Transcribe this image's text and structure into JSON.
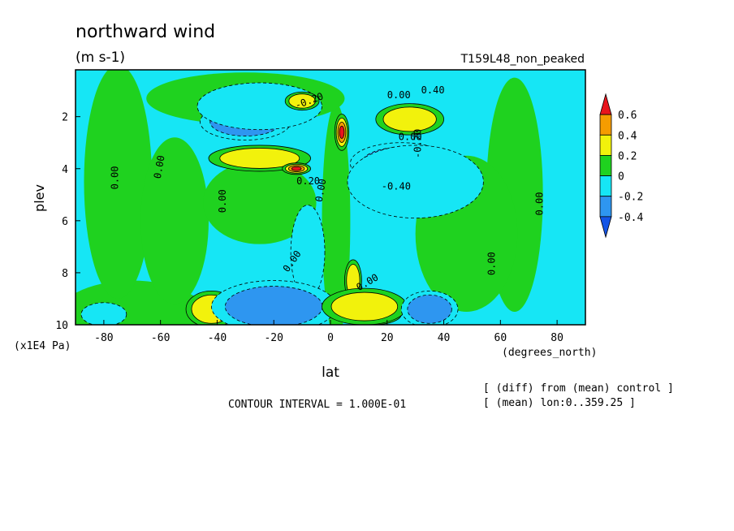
{
  "title": "northward wind",
  "units": "(m s-1)",
  "run_label": "T159L48_non_peaked",
  "contour_interval": "CONTOUR INTERVAL = 1.000E-01",
  "notes": [
    "[ (diff) from (mean) control ]",
    "[ (mean) lon:0..359.25 ]"
  ],
  "colors": {
    "red": "#e8141c",
    "orange": "#f59c00",
    "yellow": "#f2f20c",
    "green": "#1fd21f",
    "cyan": "#16e6f5",
    "lightblue": "#2e96f0",
    "blue": "#1455e6"
  },
  "chart_data": {
    "type": "heatmap",
    "title": "northward wind",
    "xlabel": "lat",
    "xunit": "(degrees_north)",
    "ylabel": "plev",
    "yunit": "(x1E4 Pa)",
    "xlim": [
      -90,
      90
    ],
    "ylim": [
      10,
      0.2
    ],
    "x_ticks": [
      "-80",
      "-60",
      "-40",
      "-20",
      "0",
      "20",
      "40",
      "60",
      "80"
    ],
    "y_ticks": [
      "2",
      "4",
      "6",
      "8",
      "10"
    ],
    "colorbar": {
      "labels": [
        "0.6",
        "0.4",
        "0.2",
        "0",
        "-0.2",
        "-0.4"
      ],
      "levels": [
        -0.4,
        -0.2,
        0,
        0.2,
        0.4,
        0.6
      ],
      "extend": "both"
    },
    "contour_labels": [
      "0.00",
      "0.00",
      "0.00",
      "0.00",
      "0.00",
      "0.00",
      "0.00",
      "0.00",
      "0.00",
      "0.00",
      "0.20",
      "0.40",
      "-0.40",
      "-0.20",
      "-0.20"
    ],
    "regions": [
      {
        "lat": -30,
        "plev": 2.2,
        "v": -0.28,
        "rx": 16,
        "ry": 0.7
      },
      {
        "lat": -25,
        "plev": 1.6,
        "v": -0.12,
        "rx": 22,
        "ry": 0.9
      },
      {
        "lat": -10,
        "plev": 1.4,
        "v": 0.38,
        "rx": 6,
        "ry": 0.35
      },
      {
        "lat": 28,
        "plev": 2.0,
        "v": 0.62,
        "rx": 6,
        "ry": 0.3
      },
      {
        "lat": 28,
        "plev": 2.1,
        "v": 0.3,
        "rx": 12,
        "ry": 0.6
      },
      {
        "lat": 4,
        "plev": 2.6,
        "v": 0.66,
        "rx": 2.5,
        "ry": 0.7
      },
      {
        "lat": -25,
        "plev": 3.6,
        "v": 0.38,
        "rx": 18,
        "ry": 0.5
      },
      {
        "lat": -12,
        "plev": 4.0,
        "v": 0.7,
        "rx": 5,
        "ry": 0.22
      },
      {
        "lat": 25,
        "plev": 3.8,
        "v": -0.3,
        "rx": 18,
        "ry": 0.8
      },
      {
        "lat": 30,
        "plev": 4.5,
        "v": -0.12,
        "rx": 24,
        "ry": 1.4
      },
      {
        "lat": -8,
        "plev": 7.2,
        "v": -0.1,
        "rx": 6,
        "ry": 1.8
      },
      {
        "lat": 8,
        "plev": 8.3,
        "v": 0.35,
        "rx": 3,
        "ry": 0.8
      },
      {
        "lat": -40,
        "plev": 9.6,
        "v": 0.65,
        "rx": 4,
        "ry": 0.35
      },
      {
        "lat": -42,
        "plev": 9.4,
        "v": 0.28,
        "rx": 9,
        "ry": 0.7
      },
      {
        "lat": -15,
        "plev": 9.5,
        "v": -0.5,
        "rx": 13,
        "ry": 0.6
      },
      {
        "lat": -20,
        "plev": 9.3,
        "v": -0.25,
        "rx": 22,
        "ry": 1.0
      },
      {
        "lat": 15,
        "plev": 9.6,
        "v": 0.68,
        "rx": 10,
        "ry": 0.4
      },
      {
        "lat": 12,
        "plev": 9.3,
        "v": 0.3,
        "rx": 15,
        "ry": 0.7
      },
      {
        "lat": 35,
        "plev": 9.4,
        "v": -0.3,
        "rx": 10,
        "ry": 0.7
      },
      {
        "lat": -80,
        "plev": 9.6,
        "v": -0.22,
        "rx": 8,
        "ry": 0.45
      }
    ]
  }
}
